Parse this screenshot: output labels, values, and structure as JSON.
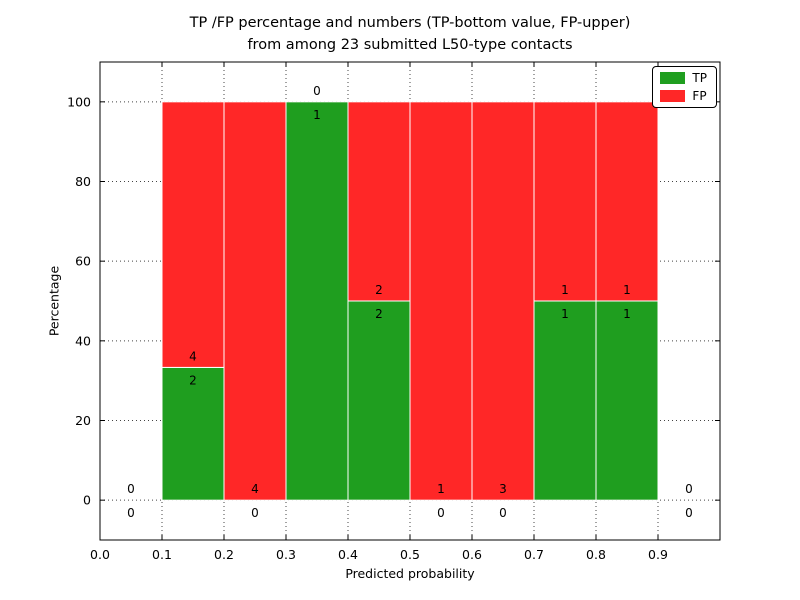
{
  "chart_data": {
    "type": "bar",
    "stacked": true,
    "title_line1": "TP /FP percentage and numbers (TP-bottom value, FP-upper)",
    "title_line2": "from among 23 submitted L50-type contacts",
    "xlabel": "Predicted probability",
    "ylabel": "Percentage",
    "xlim": [
      0.0,
      1.0
    ],
    "ylim": [
      -10,
      110
    ],
    "x_ticks": [
      "0.0",
      "0.1",
      "0.2",
      "0.3",
      "0.4",
      "0.5",
      "0.6",
      "0.7",
      "0.8",
      "0.9"
    ],
    "y_ticks": [
      0,
      20,
      40,
      60,
      80,
      100
    ],
    "grid": "dotted",
    "total_contacts": 23,
    "bar_edge_color": "#ffffff",
    "colors": {
      "tp": "#1f9e1f",
      "fp": "#ff2727"
    },
    "legend": {
      "position": "upper right",
      "entries": [
        {
          "label": "TP",
          "series": "tp"
        },
        {
          "label": "FP",
          "series": "fp"
        }
      ]
    },
    "bins": [
      {
        "range": "0.0-0.1",
        "x0": 0.0,
        "x1": 0.1,
        "tp_count": 0,
        "fp_count": 0,
        "tp_pct": 0,
        "fp_pct": 0
      },
      {
        "range": "0.1-0.2",
        "x0": 0.1,
        "x1": 0.2,
        "tp_count": 2,
        "fp_count": 4,
        "tp_pct": 33.33,
        "fp_pct": 66.67
      },
      {
        "range": "0.2-0.3",
        "x0": 0.2,
        "x1": 0.3,
        "tp_count": 0,
        "fp_count": 4,
        "tp_pct": 0,
        "fp_pct": 100
      },
      {
        "range": "0.3-0.4",
        "x0": 0.3,
        "x1": 0.4,
        "tp_count": 1,
        "fp_count": 0,
        "tp_pct": 100,
        "fp_pct": 0
      },
      {
        "range": "0.4-0.5",
        "x0": 0.4,
        "x1": 0.5,
        "tp_count": 2,
        "fp_count": 2,
        "tp_pct": 50,
        "fp_pct": 50
      },
      {
        "range": "0.5-0.6",
        "x0": 0.5,
        "x1": 0.6,
        "tp_count": 0,
        "fp_count": 1,
        "tp_pct": 0,
        "fp_pct": 100
      },
      {
        "range": "0.6-0.7",
        "x0": 0.6,
        "x1": 0.7,
        "tp_count": 0,
        "fp_count": 3,
        "tp_pct": 0,
        "fp_pct": 100
      },
      {
        "range": "0.7-0.8",
        "x0": 0.7,
        "x1": 0.8,
        "tp_count": 1,
        "fp_count": 1,
        "tp_pct": 50,
        "fp_pct": 50
      },
      {
        "range": "0.8-0.9",
        "x0": 0.8,
        "x1": 0.9,
        "tp_count": 1,
        "fp_count": 1,
        "tp_pct": 50,
        "fp_pct": 50
      },
      {
        "range": "0.9-1.0",
        "x0": 0.9,
        "x1": 1.0,
        "tp_count": 0,
        "fp_count": 0,
        "tp_pct": 0,
        "fp_pct": 0
      }
    ]
  }
}
